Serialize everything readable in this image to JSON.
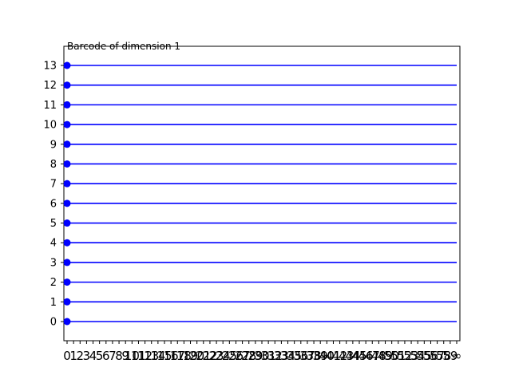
{
  "chart_data": {
    "type": "barcode",
    "title": "Barcode of dimension 1",
    "xlabel": "",
    "ylabel": "",
    "x_ticks": [
      "0",
      "1",
      "2",
      "3",
      "4",
      "5",
      "6",
      "7",
      "8",
      "9",
      "10",
      "11",
      "12",
      "13",
      "14",
      "15",
      "16",
      "17",
      "18",
      "19",
      "20",
      "21",
      "22",
      "23",
      "24",
      "25",
      "26",
      "27",
      "28",
      "29",
      "30",
      "31",
      "32",
      "33",
      "34",
      "35",
      "36",
      "37",
      "38",
      "39",
      "40",
      "41",
      "42",
      "43",
      "44",
      "45",
      "46",
      "47",
      "48",
      "49",
      "50",
      "51",
      "52",
      "53",
      "54",
      "55",
      "56",
      "57",
      "58",
      "59",
      "∞"
    ],
    "y_ticks": [
      "0",
      "1",
      "2",
      "3",
      "4",
      "5",
      "6",
      "7",
      "8",
      "9",
      "10",
      "11",
      "12",
      "13"
    ],
    "bars": [
      {
        "index": 0,
        "birth": 0,
        "death": "∞"
      },
      {
        "index": 1,
        "birth": 0,
        "death": "∞"
      },
      {
        "index": 2,
        "birth": 0,
        "death": "∞"
      },
      {
        "index": 3,
        "birth": 0,
        "death": "∞"
      },
      {
        "index": 4,
        "birth": 0,
        "death": "∞"
      },
      {
        "index": 5,
        "birth": 0,
        "death": "∞"
      },
      {
        "index": 6,
        "birth": 0,
        "death": "∞"
      },
      {
        "index": 7,
        "birth": 0,
        "death": "∞"
      },
      {
        "index": 8,
        "birth": 0,
        "death": "∞"
      },
      {
        "index": 9,
        "birth": 0,
        "death": "∞"
      },
      {
        "index": 10,
        "birth": 0,
        "death": "∞"
      },
      {
        "index": 11,
        "birth": 0,
        "death": "∞"
      },
      {
        "index": 12,
        "birth": 0,
        "death": "∞"
      },
      {
        "index": 13,
        "birth": 0,
        "death": "∞"
      }
    ],
    "colors": {
      "bar": "#0000ff",
      "axis": "#000000"
    },
    "grid": false
  }
}
